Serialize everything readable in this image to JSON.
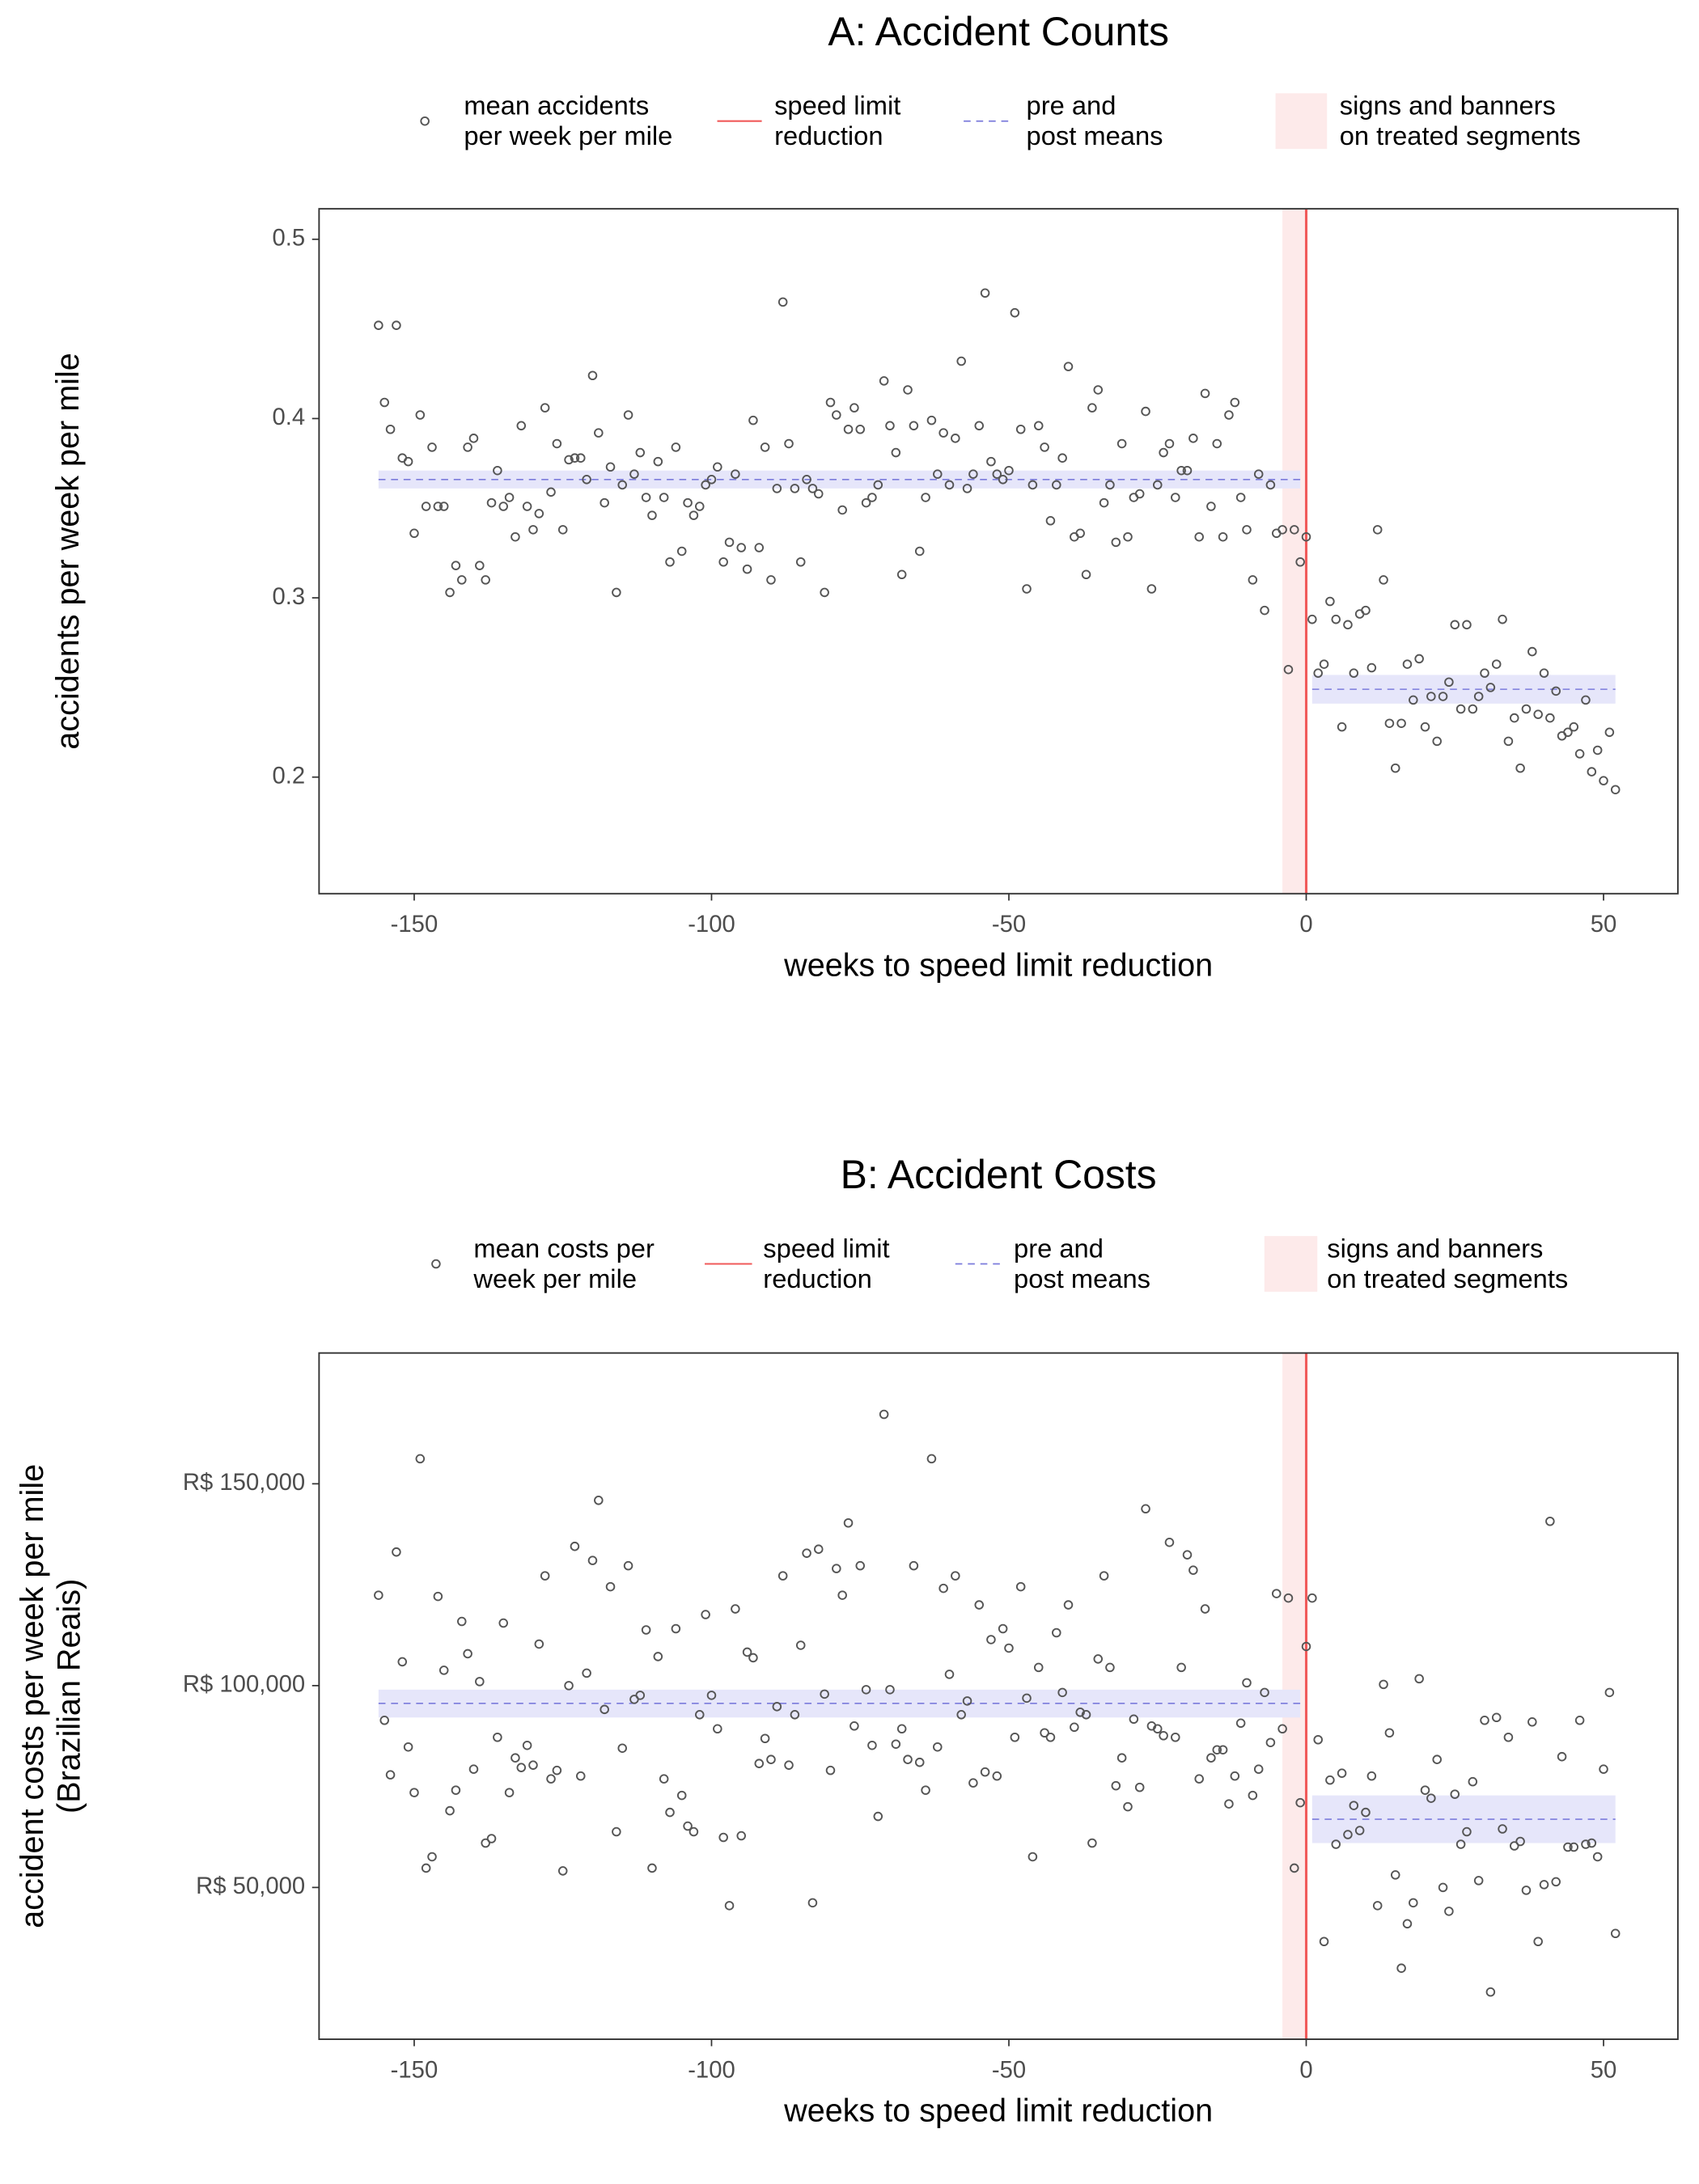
{
  "chart_data": [
    {
      "type": "scatter",
      "title": "A: Accident Counts",
      "x_label": "weeks to speed limit reduction",
      "y_label": "accidents per week per mile",
      "x": [
        -156,
        -155,
        -154,
        -153,
        -152,
        -151,
        -150,
        -149,
        -148,
        -147,
        -146,
        -145,
        -144,
        -143,
        -142,
        -141,
        -140,
        -139,
        -138,
        -137,
        -136,
        -135,
        -134,
        -133,
        -132,
        -131,
        -130,
        -129,
        -128,
        -127,
        -126,
        -125,
        -124,
        -123,
        -122,
        -121,
        -120,
        -119,
        -118,
        -117,
        -116,
        -115,
        -114,
        -113,
        -112,
        -111,
        -110,
        -109,
        -108,
        -107,
        -106,
        -105,
        -104,
        -103,
        -102,
        -101,
        -100,
        -99,
        -98,
        -97,
        -96,
        -95,
        -94,
        -93,
        -92,
        -91,
        -90,
        -89,
        -88,
        -87,
        -86,
        -85,
        -84,
        -83,
        -82,
        -81,
        -80,
        -79,
        -78,
        -77,
        -76,
        -75,
        -74,
        -73,
        -72,
        -71,
        -70,
        -69,
        -68,
        -67,
        -66,
        -65,
        -64,
        -63,
        -62,
        -61,
        -60,
        -59,
        -58,
        -57,
        -56,
        -55,
        -54,
        -53,
        -52,
        -51,
        -50,
        -49,
        -48,
        -47,
        -46,
        -45,
        -44,
        -43,
        -42,
        -41,
        -40,
        -39,
        -38,
        -37,
        -36,
        -35,
        -34,
        -33,
        -32,
        -31,
        -30,
        -29,
        -28,
        -27,
        -26,
        -25,
        -24,
        -23,
        -22,
        -21,
        -20,
        -19,
        -18,
        -17,
        -16,
        -15,
        -14,
        -13,
        -12,
        -11,
        -10,
        -9,
        -8,
        -7,
        -6,
        -5,
        -4,
        -3,
        -2,
        -1,
        0,
        1,
        2,
        3,
        4,
        5,
        6,
        7,
        8,
        9,
        10,
        11,
        12,
        13,
        14,
        15,
        16,
        17,
        18,
        19,
        20,
        21,
        22,
        23,
        24,
        25,
        26,
        27,
        28,
        29,
        30,
        31,
        32,
        33,
        34,
        35,
        36,
        37,
        38,
        39,
        40,
        41,
        42,
        43,
        44,
        45,
        46,
        47,
        48,
        49,
        50,
        51,
        52
      ],
      "series": [
        {
          "name": "mean accidents\nper week per mile",
          "color": "#555555",
          "values": [
            0.452,
            0.409,
            0.394,
            0.452,
            0.378,
            0.376,
            0.336,
            0.402,
            0.351,
            0.384,
            0.351,
            0.351,
            0.303,
            0.318,
            0.31,
            0.384,
            0.389,
            0.318,
            0.31,
            0.353,
            0.371,
            0.351,
            0.356,
            0.334,
            0.396,
            0.351,
            0.338,
            0.347,
            0.406,
            0.359,
            0.386,
            0.338,
            0.377,
            0.378,
            0.378,
            0.366,
            0.424,
            0.392,
            0.353,
            0.373,
            0.303,
            0.363,
            0.402,
            0.369,
            0.381,
            0.356,
            0.346,
            0.376,
            0.356,
            0.32,
            0.384,
            0.326,
            0.353,
            0.346,
            0.351,
            0.363,
            0.366,
            0.373,
            0.32,
            0.331,
            0.369,
            0.328,
            0.316,
            0.399,
            0.328,
            0.384,
            0.31,
            0.361,
            0.465,
            0.386,
            0.361,
            0.32,
            0.366,
            0.361,
            0.358,
            0.303,
            0.409,
            0.402,
            0.349,
            0.394,
            0.406,
            0.394,
            0.353,
            0.356,
            0.363,
            0.421,
            0.396,
            0.381,
            0.313,
            0.416,
            0.396,
            0.326,
            0.356,
            0.399,
            0.369,
            0.392,
            0.363,
            0.389,
            0.432,
            0.361,
            0.369,
            0.396,
            0.47,
            0.376,
            0.369,
            0.366,
            0.371,
            0.459,
            0.394,
            0.305,
            0.363,
            0.396,
            0.384,
            0.343,
            0.363,
            0.378,
            0.429,
            0.334,
            0.336,
            0.313,
            0.406,
            0.416,
            0.353,
            0.363,
            0.331,
            0.386,
            0.334,
            0.356,
            0.358,
            0.404,
            0.305,
            0.363,
            0.381,
            0.386,
            0.356,
            0.371,
            0.371,
            0.389,
            0.334,
            0.414,
            0.351,
            0.386,
            0.334,
            0.402,
            0.409,
            0.356,
            0.338,
            0.31,
            0.369,
            0.293,
            0.363,
            0.336,
            0.338,
            0.26,
            0.338,
            0.32,
            0.334,
            0.288,
            0.258,
            0.263,
            0.298,
            0.288,
            0.228,
            0.285,
            0.258,
            0.291,
            0.293,
            0.261,
            0.338,
            0.31,
            0.23,
            0.205,
            0.23,
            0.263,
            0.243,
            0.266,
            0.228,
            0.245,
            0.22,
            0.245,
            0.253,
            0.285,
            0.238,
            0.285,
            0.238,
            0.245,
            0.258,
            0.25,
            0.263,
            0.288,
            0.22,
            0.233,
            0.205,
            0.238,
            0.27,
            0.235,
            0.258,
            0.233,
            0.248,
            0.223,
            0.225,
            0.228,
            0.213,
            0.243,
            0.203,
            0.215,
            0.198,
            0.225,
            0.193
          ]
        }
      ],
      "reduction_line": {
        "name": "speed limit\nreduction",
        "x": 0,
        "color": "#f05a5a"
      },
      "means": {
        "name": "pre and\npost means",
        "color": "#7b7bdc",
        "band_color": "#e6e6fa",
        "segments": [
          {
            "xrange": [
              -156,
              -1
            ],
            "value": 0.366,
            "low": 0.361,
            "high": 0.371
          },
          {
            "xrange": [
              1,
              52
            ],
            "value": 0.249,
            "low": 0.241,
            "high": 0.257
          }
        ]
      },
      "signs_period": {
        "name": "signs and banners\non treated segments",
        "xrange": [
          -4,
          0
        ],
        "color": "#fdeaea"
      },
      "xlim": [
        -166,
        62.5
      ],
      "ylim": [
        0.135,
        0.517
      ],
      "xticks": [
        -150,
        -100,
        -50,
        0,
        50
      ],
      "yticks": [
        0.2,
        0.3,
        0.4,
        0.5
      ],
      "grid": false
    },
    {
      "type": "scatter",
      "title": "B: Accident Costs",
      "x_label": "weeks to speed limit reduction",
      "y_label": "accident costs per week per mile\n(Brazilian Reais)",
      "x": [
        -156,
        -155,
        -154,
        -153,
        -152,
        -151,
        -150,
        -149,
        -148,
        -147,
        -146,
        -145,
        -144,
        -143,
        -142,
        -141,
        -140,
        -139,
        -138,
        -137,
        -136,
        -135,
        -134,
        -133,
        -132,
        -131,
        -130,
        -129,
        -128,
        -127,
        -126,
        -125,
        -124,
        -123,
        -122,
        -121,
        -120,
        -119,
        -118,
        -117,
        -116,
        -115,
        -114,
        -113,
        -112,
        -111,
        -110,
        -109,
        -108,
        -107,
        -106,
        -105,
        -104,
        -103,
        -102,
        -101,
        -100,
        -99,
        -98,
        -97,
        -96,
        -95,
        -94,
        -93,
        -92,
        -91,
        -90,
        -89,
        -88,
        -87,
        -86,
        -85,
        -84,
        -83,
        -82,
        -81,
        -80,
        -79,
        -78,
        -77,
        -76,
        -75,
        -74,
        -73,
        -72,
        -71,
        -70,
        -69,
        -68,
        -67,
        -66,
        -65,
        -64,
        -63,
        -62,
        -61,
        -60,
        -59,
        -58,
        -57,
        -56,
        -55,
        -54,
        -53,
        -52,
        -51,
        -50,
        -49,
        -48,
        -47,
        -46,
        -45,
        -44,
        -43,
        -42,
        -41,
        -40,
        -39,
        -38,
        -37,
        -36,
        -35,
        -34,
        -33,
        -32,
        -31,
        -30,
        -29,
        -28,
        -27,
        -26,
        -25,
        -24,
        -23,
        -22,
        -21,
        -20,
        -19,
        -18,
        -17,
        -16,
        -15,
        -14,
        -13,
        -12,
        -11,
        -10,
        -9,
        -8,
        -7,
        -6,
        -5,
        -4,
        -3,
        -2,
        -1,
        0,
        1,
        2,
        3,
        4,
        5,
        6,
        7,
        8,
        9,
        10,
        11,
        12,
        13,
        14,
        15,
        16,
        17,
        18,
        19,
        20,
        21,
        22,
        23,
        24,
        25,
        26,
        27,
        28,
        29,
        30,
        31,
        32,
        33,
        34,
        35,
        36,
        37,
        38,
        39,
        40,
        41,
        42,
        43,
        44,
        45,
        46,
        47,
        48,
        49,
        50,
        51,
        52
      ],
      "series": [
        {
          "name": "mean costs per\nweek per mile",
          "color": "#555555",
          "values": [
            122400,
            91400,
            77900,
            133100,
            105900,
            84800,
            73500,
            156200,
            54800,
            57600,
            122100,
            103800,
            69000,
            74100,
            115900,
            107900,
            79300,
            101000,
            61000,
            62100,
            87200,
            115500,
            73500,
            82100,
            79700,
            85200,
            80300,
            110300,
            127200,
            76900,
            79000,
            54100,
            100000,
            134500,
            77600,
            103100,
            131000,
            145900,
            94100,
            124500,
            63800,
            84500,
            129700,
            96600,
            97600,
            113800,
            54800,
            107200,
            76900,
            68600,
            114100,
            72800,
            65200,
            63800,
            92800,
            117600,
            97600,
            89300,
            62400,
            45500,
            119000,
            62800,
            108300,
            106900,
            80700,
            86900,
            81700,
            94800,
            127200,
            80300,
            92800,
            110000,
            132800,
            46200,
            133800,
            97900,
            79000,
            129000,
            122400,
            140300,
            90000,
            129700,
            99000,
            85200,
            67600,
            167200,
            99000,
            85500,
            89300,
            81700,
            129700,
            81000,
            74100,
            156200,
            84800,
            124100,
            102800,
            127200,
            92800,
            96200,
            75900,
            120000,
            78600,
            111400,
            77600,
            114100,
            109300,
            87200,
            124500,
            96900,
            57600,
            104500,
            88300,
            87200,
            113100,
            98300,
            120000,
            89700,
            93400,
            92800,
            61000,
            106600,
            127200,
            104500,
            75200,
            82100,
            70000,
            91700,
            74800,
            143800,
            90000,
            89300,
            87600,
            135500,
            87200,
            104500,
            132400,
            128600,
            76900,
            119000,
            82100,
            84100,
            84100,
            70700,
            77600,
            90700,
            100700,
            72800,
            79300,
            98300,
            85900,
            122800,
            89300,
            121700,
            54800,
            71000,
            109700,
            121700,
            86600,
            36600,
            76600,
            60700,
            78300,
            63100,
            70300,
            64100,
            68600,
            77600,
            45500,
            100300,
            88300,
            53100,
            30000,
            41000,
            46200,
            101700,
            74100,
            72100,
            81700,
            50000,
            44100,
            73100,
            60700,
            63800,
            76200,
            51700,
            91400,
            24100,
            92100,
            64500,
            87200,
            60300,
            61400,
            49300,
            91000,
            36600,
            50700,
            140700,
            51400,
            82400,
            60000,
            60000,
            91400,
            60700,
            61000,
            57600,
            79300,
            98300,
            38600
          ]
        }
      ],
      "reduction_line": {
        "name": "speed limit\nreduction",
        "x": 0,
        "color": "#f05a5a"
      },
      "means": {
        "name": "pre and\npost means",
        "color": "#7b7bdc",
        "band_color": "#e6e6fa",
        "segments": [
          {
            "xrange": [
              -156,
              -1
            ],
            "value": 95600,
            "low": 92100,
            "high": 99000
          },
          {
            "xrange": [
              1,
              52
            ],
            "value": 66900,
            "low": 61000,
            "high": 72800
          }
        ]
      },
      "signs_period": {
        "name": "signs and banners\non treated segments",
        "xrange": [
          -4,
          0
        ],
        "color": "#fdeaea"
      },
      "xlim": [
        -166,
        62.5
      ],
      "ylim": [
        12400,
        182400
      ],
      "xticks": [
        -150,
        -100,
        -50,
        0,
        50
      ],
      "yticks": [
        {
          "value": 50000,
          "label": "R$ 50,000"
        },
        {
          "value": 100000,
          "label": "R$ 100,000"
        },
        {
          "value": 150000,
          "label": "R$ 150,000"
        }
      ],
      "grid": false
    }
  ]
}
